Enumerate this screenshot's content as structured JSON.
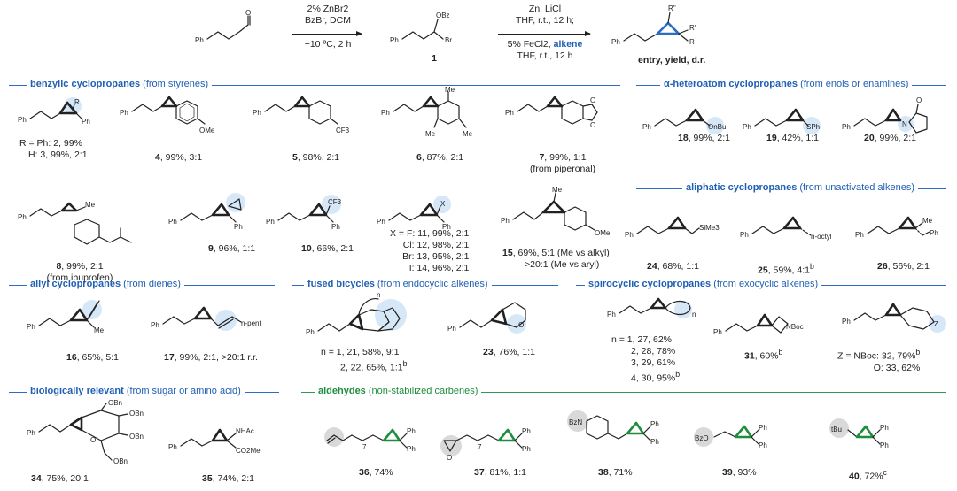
{
  "scheme": {
    "step1_conditions": [
      "2% ZnBr2",
      "BzBr, DCM",
      "−10 ºC, 2 h"
    ],
    "intermediate_label": "1",
    "step2_conditions_top": [
      "Zn, LiCl",
      "THF, r.t., 12 h;"
    ],
    "step2_conditions_bottom": [
      "5% FeCl2, ",
      "alkene",
      "THF, r.t., 12 h"
    ],
    "product_label": "entry, yield, d.r.",
    "atom_labels": {
      "ph": "Ph",
      "obz": "OBz",
      "br": "Br",
      "o": "O",
      "r": "R",
      "r1": "R'",
      "r2": "R''"
    }
  },
  "sections": {
    "benzylic": {
      "bold": "benzylic cyclopropanes",
      "rest": " (from styrenes)"
    },
    "heteroatom": {
      "bold": "α-heteroatom cyclopropanes",
      "rest": " (from enols or enamines)"
    },
    "aliphatic": {
      "bold": "aliphatic cyclopropanes",
      "rest": " (from unactivated alkenes)"
    },
    "allyl": {
      "bold": "allyl cyclopropanes",
      "rest": " (from dienes)"
    },
    "fused": {
      "bold": "fused bicycles",
      "rest": " (from endocyclic alkenes)"
    },
    "spiro": {
      "bold": "spirocyclic cyclopropanes",
      "rest": " (from exocyclic alkenes)"
    },
    "bio": {
      "bold": "biologically relevant",
      "rest": " (from sugar or amino acid)"
    },
    "aldehydes": {
      "bold": "aldehydes",
      "rest": " (non-stabilized carbenes)"
    }
  },
  "entries": {
    "e2_3": {
      "line1": "R = Ph: 2, 99%",
      "line2": "H: 3, 99%, 2:1"
    },
    "e4": {
      "id": "4",
      "rest": ", 99%, 3:1"
    },
    "e5": {
      "id": "5",
      "rest": ", 98%, 2:1"
    },
    "e6": {
      "id": "6",
      "rest": ", 87%, 2:1"
    },
    "e7": {
      "id": "7",
      "rest": ", 99%, 1:1",
      "note": "(from piperonal)"
    },
    "e8": {
      "id": "8",
      "rest": ", 99%, 2:1",
      "note": "(from ibuprofen)"
    },
    "e9": {
      "id": "9",
      "rest": ", 96%, 1:1"
    },
    "e10": {
      "id": "10",
      "rest": ", 66%, 2:1"
    },
    "e11_14": {
      "lines": [
        "X = F: 11, 99%, 2:1",
        "Cl: 12, 98%, 2:1",
        "Br: 13, 95%, 2:1",
        "I: 14, 96%, 2:1"
      ]
    },
    "e15": {
      "id": "15",
      "rest": ", 69%, 5:1 (Me vs alkyl)",
      "note": ">20:1 (Me vs aryl)"
    },
    "e16": {
      "id": "16",
      "rest": ", 65%, 5:1"
    },
    "e17": {
      "id": "17",
      "rest": ", 99%, 2:1, >20:1 r.r."
    },
    "e18": {
      "id": "18",
      "rest": ", 99%, 2:1"
    },
    "e19": {
      "id": "19",
      "rest": ", 42%, 1:1"
    },
    "e20": {
      "id": "20",
      "rest": ", 99%, 2:1"
    },
    "e21_22": {
      "line1": "n = 1, 21, 58%, 9:1",
      "line2": "2, 22, 65%, 1:1",
      "sup": "b"
    },
    "e23": {
      "id": "23",
      "rest": ", 76%, 1:1"
    },
    "e24": {
      "id": "24",
      "rest": ", 68%, 1:1"
    },
    "e25": {
      "id": "25",
      "rest": ", 59%, 4:1",
      "sup": "b"
    },
    "e26": {
      "id": "26",
      "rest": ", 56%, 2:1"
    },
    "e27_30": {
      "lines": [
        "n = 1, 27, 62%",
        "2, 28, 78%",
        "3, 29, 61%",
        "4, 30, 95%"
      ],
      "sup": "b"
    },
    "e31": {
      "id": "31",
      "rest": ", 60%",
      "sup": "b"
    },
    "e32_33": {
      "line1": "Z = NBoc: 32, 79%",
      "sup": "b",
      "line2": "O: 33, 62%"
    },
    "e34": {
      "id": "34",
      "rest": ", 75%, 20:1"
    },
    "e35": {
      "id": "35",
      "rest": ", 74%, 2:1"
    },
    "e36": {
      "id": "36",
      "rest": ", 74%"
    },
    "e37": {
      "id": "37",
      "rest": ", 81%, 1:1"
    },
    "e38": {
      "id": "38",
      "rest": ", 71%"
    },
    "e39": {
      "id": "39",
      "rest": ", 93%"
    },
    "e40": {
      "id": "40",
      "rest": ", 72%",
      "sup": "c"
    }
  },
  "atom_text": {
    "ome": "OMe",
    "cf3": "CF3",
    "me": "Me",
    "obu": "OnBu",
    "sph": "SPh",
    "n": "N",
    "o": "O",
    "sime3": "SiMe3",
    "noctyl": "n-octyl",
    "npent": "n-pent",
    "x": "X",
    "z": "Z",
    "nboc": "NBoc",
    "obn": "OBn",
    "nhac": "NHAc",
    "co2me": "CO2Me",
    "bzn": "BzN",
    "bzo": "BzO",
    "tbu": "tBu",
    "n_sub": "n",
    "seven": "7"
  },
  "colors": {
    "blue": "#2b6cc4",
    "green": "#2f9a4a",
    "highlight": "#cfe3f6"
  }
}
